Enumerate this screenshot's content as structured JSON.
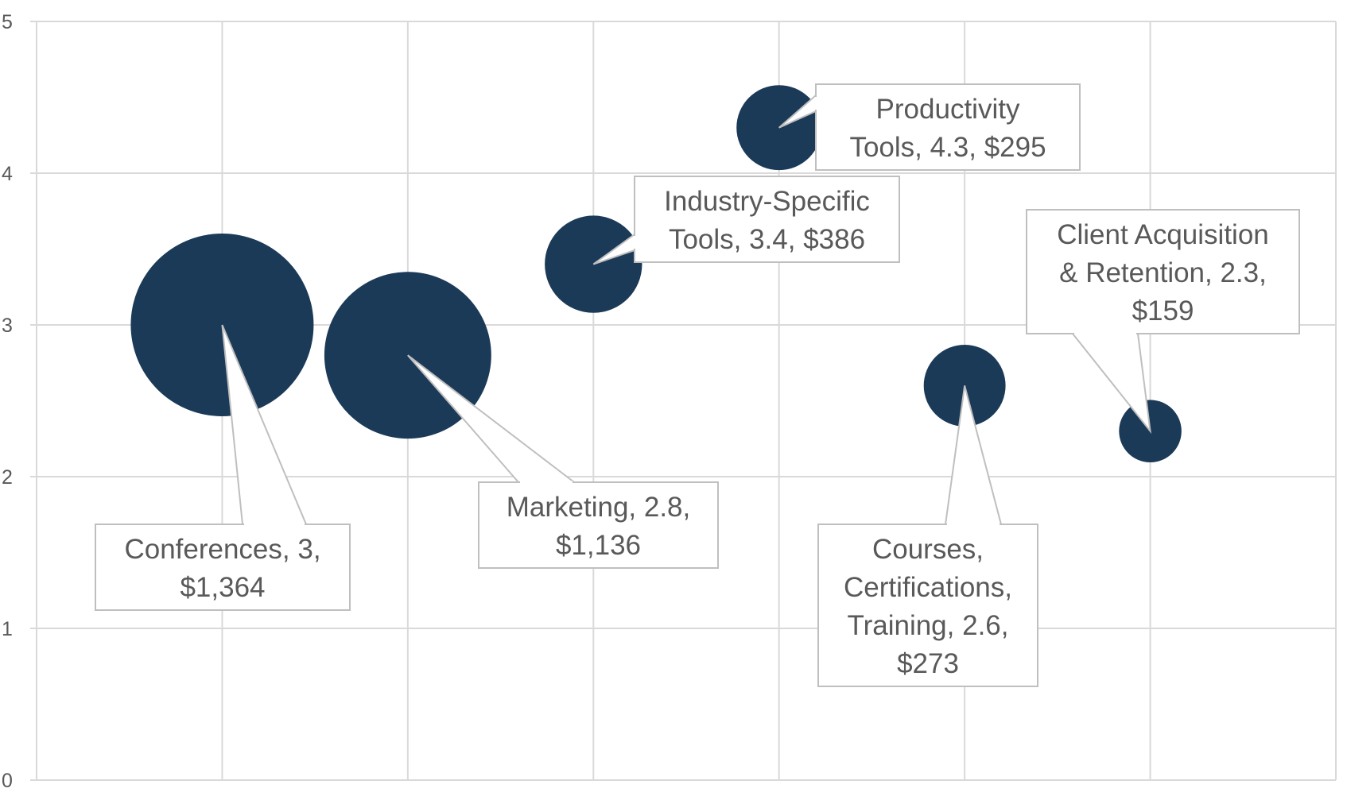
{
  "chart_data": {
    "type": "bubble",
    "title": "",
    "xlabel": "",
    "ylabel": "",
    "xlim": [
      0,
      7
    ],
    "ylim": [
      0,
      5
    ],
    "yticks": [
      "0",
      "1",
      "2",
      "3",
      "4",
      "5"
    ],
    "grid": true,
    "colors": {
      "bubble": "#1b3a57",
      "grid": "#d9d9d9",
      "label_border": "#bfbfbf",
      "text": "#595959"
    },
    "points": [
      {
        "name": "Conferences",
        "x": 1,
        "y": 3.0,
        "size": 1364,
        "label_lines": [
          "Conferences, 3,",
          "$1,364"
        ]
      },
      {
        "name": "Marketing",
        "x": 2,
        "y": 2.8,
        "size": 1136,
        "label_lines": [
          "Marketing, 2.8,",
          "$1,136"
        ]
      },
      {
        "name": "Industry-Specific Tools",
        "x": 3,
        "y": 3.4,
        "size": 386,
        "label_lines": [
          "Industry-Specific",
          "Tools, 3.4,  $386"
        ]
      },
      {
        "name": "Productivity Tools",
        "x": 4,
        "y": 4.3,
        "size": 295,
        "label_lines": [
          "Productivity",
          "Tools, 4.3,  $295"
        ]
      },
      {
        "name": "Courses, Certifications, Training",
        "x": 5,
        "y": 2.6,
        "size": 273,
        "label_lines": [
          "Courses,",
          "Certifications,",
          "Training, 2.6,",
          "$273"
        ]
      },
      {
        "name": "Client Acquisition & Retention",
        "x": 6,
        "y": 2.3,
        "size": 159,
        "label_lines": [
          "Client Acquisition",
          "& Retention, 2.3,",
          "$159"
        ]
      }
    ]
  }
}
